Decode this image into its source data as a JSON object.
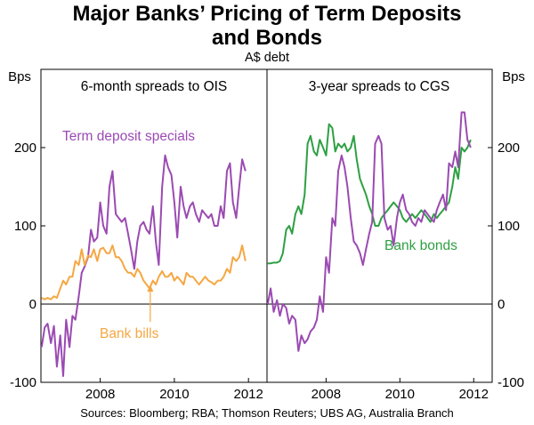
{
  "header": {
    "title_line1": "Major Banks’ Pricing of Term Deposits",
    "title_line2": "and Bonds",
    "subtitle": "A$ debt"
  },
  "footer": {
    "source": "Sources: Bloomberg; RBA; Thomson Reuters; UBS AG, Australia Branch"
  },
  "colors": {
    "term_deposit": "#9b4ab2",
    "bank_bills": "#f5a742",
    "bank_bonds": "#2ea043",
    "axis": "#000000"
  },
  "chart_data": [
    {
      "type": "line",
      "title": "6-month spreads to OIS",
      "ylabel": "Bps",
      "ylim": [
        -100,
        300
      ],
      "yticks": [
        -100,
        0,
        100,
        200
      ],
      "xlim": [
        2006.4,
        2012.5
      ],
      "xticks": [
        2008,
        2010,
        2012
      ],
      "grid": false,
      "series": [
        {
          "name": "Term deposit specials",
          "color": "#9b4ab2",
          "x": [
            2006.42,
            2006.5,
            2006.58,
            2006.67,
            2006.75,
            2006.83,
            2006.92,
            2007.0,
            2007.08,
            2007.17,
            2007.25,
            2007.33,
            2007.42,
            2007.5,
            2007.58,
            2007.67,
            2007.75,
            2007.83,
            2007.92,
            2008.0,
            2008.08,
            2008.17,
            2008.25,
            2008.33,
            2008.42,
            2008.5,
            2008.58,
            2008.67,
            2008.75,
            2008.83,
            2008.92,
            2009.0,
            2009.08,
            2009.17,
            2009.25,
            2009.33,
            2009.42,
            2009.5,
            2009.58,
            2009.67,
            2009.75,
            2009.83,
            2009.92,
            2010.0,
            2010.08,
            2010.17,
            2010.25,
            2010.33,
            2010.42,
            2010.5,
            2010.58,
            2010.67,
            2010.75,
            2010.83,
            2010.92,
            2011.0,
            2011.08,
            2011.17,
            2011.25,
            2011.33,
            2011.42,
            2011.5,
            2011.58,
            2011.67,
            2011.75,
            2011.83,
            2011.92
          ],
          "values": [
            -55,
            -30,
            -25,
            -50,
            -28,
            -80,
            -40,
            -92,
            -20,
            -55,
            -15,
            -20,
            10,
            40,
            48,
            60,
            95,
            80,
            85,
            130,
            100,
            90,
            150,
            170,
            115,
            110,
            105,
            110,
            90,
            70,
            45,
            80,
            100,
            105,
            95,
            90,
            125,
            80,
            50,
            150,
            190,
            175,
            165,
            130,
            85,
            150,
            125,
            110,
            125,
            130,
            115,
            105,
            120,
            115,
            110,
            115,
            100,
            100,
            125,
            110,
            170,
            180,
            130,
            110,
            150,
            185,
            170
          ]
        },
        {
          "name": "Bank bills",
          "color": "#f5a742",
          "x": [
            2006.42,
            2006.5,
            2006.58,
            2006.67,
            2006.75,
            2006.83,
            2006.92,
            2007.0,
            2007.08,
            2007.17,
            2007.25,
            2007.33,
            2007.42,
            2007.5,
            2007.58,
            2007.67,
            2007.75,
            2007.83,
            2007.92,
            2008.0,
            2008.08,
            2008.17,
            2008.25,
            2008.33,
            2008.42,
            2008.5,
            2008.58,
            2008.67,
            2008.75,
            2008.83,
            2008.92,
            2009.0,
            2009.08,
            2009.17,
            2009.25,
            2009.33,
            2009.42,
            2009.5,
            2009.58,
            2009.67,
            2009.75,
            2009.83,
            2009.92,
            2010.0,
            2010.08,
            2010.17,
            2010.25,
            2010.33,
            2010.42,
            2010.5,
            2010.58,
            2010.67,
            2010.75,
            2010.83,
            2010.92,
            2011.0,
            2011.08,
            2011.17,
            2011.25,
            2011.33,
            2011.42,
            2011.5,
            2011.58,
            2011.67,
            2011.75,
            2011.83,
            2011.92
          ],
          "values": [
            8,
            6,
            8,
            6,
            10,
            8,
            20,
            30,
            25,
            35,
            35,
            55,
            50,
            70,
            50,
            62,
            60,
            70,
            55,
            70,
            72,
            65,
            65,
            75,
            60,
            60,
            55,
            45,
            40,
            40,
            35,
            45,
            40,
            30,
            25,
            20,
            30,
            25,
            35,
            42,
            35,
            35,
            40,
            30,
            35,
            30,
            25,
            40,
            35,
            35,
            30,
            25,
            30,
            35,
            30,
            28,
            25,
            30,
            30,
            35,
            45,
            40,
            60,
            55,
            60,
            75,
            55
          ]
        }
      ],
      "annotations": [
        {
          "text": "Term deposit specials",
          "color": "#9b4ab2"
        },
        {
          "text": "Bank bills",
          "color": "#f5a742",
          "arrow_to": {
            "x": 2009.35,
            "y": 25
          }
        }
      ]
    },
    {
      "type": "line",
      "title": "3-year spreads to CGS",
      "ylabel": "Bps",
      "ylim": [
        -100,
        300
      ],
      "yticks": [
        -100,
        0,
        100,
        200
      ],
      "xlim": [
        2006.4,
        2012.5
      ],
      "xticks": [
        2008,
        2010,
        2012
      ],
      "grid": false,
      "series": [
        {
          "name": "Bank bonds",
          "color": "#2ea043",
          "x": [
            2006.42,
            2006.5,
            2006.58,
            2006.67,
            2006.75,
            2006.83,
            2006.92,
            2007.0,
            2007.08,
            2007.17,
            2007.25,
            2007.33,
            2007.42,
            2007.5,
            2007.58,
            2007.67,
            2007.75,
            2007.83,
            2007.92,
            2008.0,
            2008.08,
            2008.17,
            2008.25,
            2008.33,
            2008.42,
            2008.5,
            2008.58,
            2008.67,
            2008.75,
            2008.83,
            2008.92,
            2009.0,
            2009.08,
            2009.17,
            2009.25,
            2009.33,
            2009.42,
            2009.5,
            2009.58,
            2009.67,
            2009.75,
            2009.83,
            2009.92,
            2010.0,
            2010.08,
            2010.17,
            2010.25,
            2010.33,
            2010.42,
            2010.5,
            2010.58,
            2010.67,
            2010.75,
            2010.83,
            2010.92,
            2011.0,
            2011.08,
            2011.17,
            2011.25,
            2011.33,
            2011.42,
            2011.5,
            2011.58,
            2011.67,
            2011.75,
            2011.83,
            2011.92
          ],
          "values": [
            52,
            52,
            53,
            53,
            55,
            65,
            95,
            100,
            90,
            115,
            125,
            115,
            140,
            205,
            215,
            195,
            190,
            210,
            200,
            190,
            230,
            225,
            195,
            205,
            200,
            205,
            195,
            200,
            215,
            185,
            160,
            150,
            140,
            125,
            115,
            100,
            100,
            110,
            115,
            120,
            125,
            130,
            125,
            120,
            110,
            105,
            110,
            115,
            110,
            115,
            120,
            115,
            110,
            105,
            115,
            110,
            115,
            120,
            125,
            130,
            150,
            175,
            160,
            200,
            195,
            200,
            210
          ]
        },
        {
          "name": "Term deposit specials",
          "color": "#9b4ab2",
          "x": [
            2006.42,
            2006.5,
            2006.58,
            2006.67,
            2006.75,
            2006.83,
            2006.92,
            2007.0,
            2007.08,
            2007.17,
            2007.25,
            2007.33,
            2007.42,
            2007.5,
            2007.58,
            2007.67,
            2007.75,
            2007.83,
            2007.92,
            2008.0,
            2008.08,
            2008.17,
            2008.25,
            2008.33,
            2008.42,
            2008.5,
            2008.58,
            2008.67,
            2008.75,
            2008.83,
            2008.92,
            2009.0,
            2009.08,
            2009.17,
            2009.25,
            2009.33,
            2009.42,
            2009.5,
            2009.58,
            2009.67,
            2009.75,
            2009.83,
            2009.92,
            2010.0,
            2010.08,
            2010.17,
            2010.25,
            2010.33,
            2010.42,
            2010.5,
            2010.58,
            2010.67,
            2010.75,
            2010.83,
            2010.92,
            2011.0,
            2011.08,
            2011.17,
            2011.25,
            2011.33,
            2011.42,
            2011.5,
            2011.58,
            2011.67,
            2011.75,
            2011.83,
            2011.92
          ],
          "values": [
            0,
            20,
            -10,
            5,
            -15,
            0,
            -5,
            -25,
            -15,
            -20,
            -60,
            -40,
            -50,
            -45,
            -35,
            -30,
            -20,
            10,
            -10,
            60,
            40,
            110,
            100,
            170,
            190,
            175,
            150,
            110,
            80,
            75,
            65,
            50,
            70,
            90,
            105,
            205,
            215,
            205,
            110,
            95,
            100,
            75,
            110,
            130,
            140,
            120,
            115,
            105,
            100,
            110,
            105,
            120,
            115,
            110,
            105,
            120,
            130,
            140,
            120,
            180,
            175,
            195,
            175,
            245,
            245,
            210,
            200
          ]
        }
      ],
      "annotations": [
        {
          "text": "Bank bonds",
          "color": "#2ea043"
        }
      ]
    }
  ]
}
